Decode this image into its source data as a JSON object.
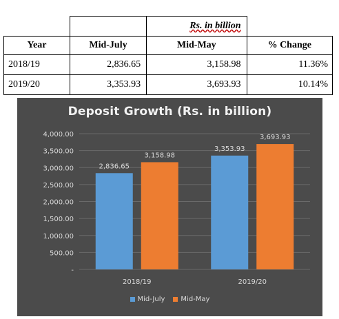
{
  "table": {
    "unit_label": "Rs. in billion",
    "headers": [
      "Year",
      "Mid-July",
      "Mid-May",
      "% Change"
    ],
    "rows": [
      {
        "year": "2018/19",
        "mid_july": "2,836.65",
        "mid_may": "3,158.98",
        "change": "11.36%"
      },
      {
        "year": "2019/20",
        "mid_july": "3,353.93",
        "mid_may": "3,693.93",
        "change": "10.14%"
      }
    ]
  },
  "chart_data": {
    "type": "bar",
    "title": "Deposit Growth (Rs. in billion)",
    "categories": [
      "2018/19",
      "2019/20"
    ],
    "series": [
      {
        "name": "Mid-July",
        "values": [
          2836.65,
          3353.93
        ],
        "labels": [
          "2,836.65",
          "3,353.93"
        ],
        "color": "#5b9bd5"
      },
      {
        "name": "Mid-May",
        "values": [
          3158.98,
          3693.93
        ],
        "labels": [
          "3,158.98",
          "3,693.93"
        ],
        "color": "#ed7d31"
      }
    ],
    "ylim": [
      0,
      4000
    ],
    "yticks": [
      0,
      500,
      1000,
      1500,
      2000,
      2500,
      3000,
      3500,
      4000
    ],
    "ytick_labels": [
      "-",
      "500.00",
      "1,000.00",
      "1,500.00",
      "2,000.00",
      "2,500.00",
      "3,000.00",
      "3,500.00",
      "4,000.00"
    ],
    "grid": true,
    "legend_position": "bottom",
    "background": "#4b4b4b"
  }
}
